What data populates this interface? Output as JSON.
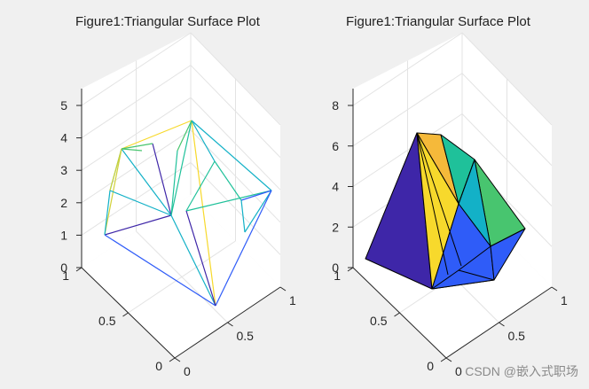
{
  "chart_data": [
    {
      "type": "3d-trisurf-wireframe",
      "title": "Figure1:Triangular Surface Plot",
      "zlim": [
        0,
        5
      ],
      "z_ticks": [
        "0",
        "1",
        "2",
        "3",
        "4",
        "5"
      ],
      "x_ticks": [
        "0",
        "0.5",
        "1"
      ],
      "y_ticks": [
        "0",
        "0.5",
        "1"
      ],
      "grid": true
    },
    {
      "type": "3d-trisurf-filled",
      "title": "Figure1:Triangular Surface Plot",
      "zlim": [
        0,
        8
      ],
      "z_ticks": [
        "0",
        "2",
        "4",
        "6",
        "8"
      ],
      "x_ticks": [
        "0",
        "0.5",
        "1"
      ],
      "y_ticks": [
        "0",
        "0.5",
        "1"
      ],
      "grid": true
    }
  ],
  "colors": {
    "background": "#f0f0f0",
    "axes_face": "#ffffff",
    "grid": "#e3e3e3",
    "axis": "#262626",
    "palette": [
      "#3e26a8",
      "#2f5cf8",
      "#13b1c7",
      "#1fc19a",
      "#48c56f",
      "#d1d13a",
      "#f7d92c",
      "#f5b93a"
    ]
  },
  "watermark": "CSDN @嵌入式职场"
}
